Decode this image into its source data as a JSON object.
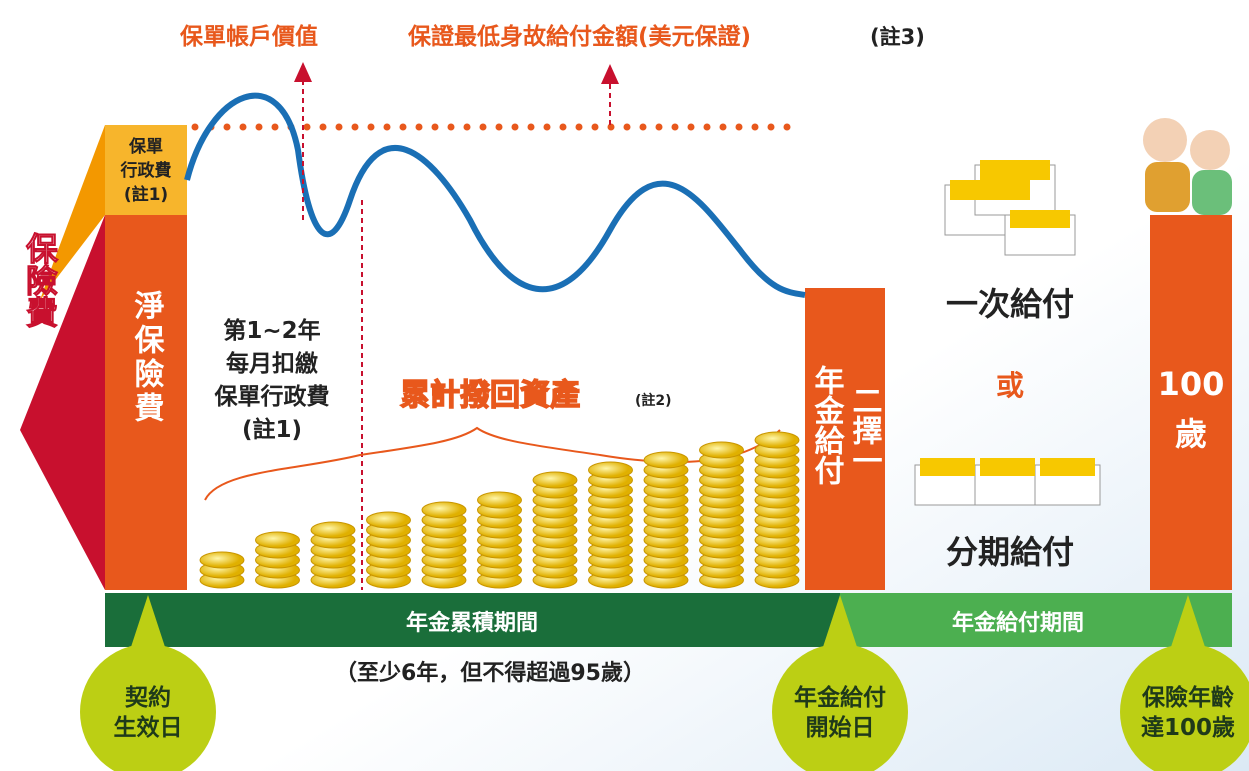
{
  "legend": {
    "account_value": "保單帳戶價值",
    "guarantee": "保證最低身故給付金額(美元保證)",
    "guarantee_note": "(註3)"
  },
  "premium": "保險費",
  "admin_fee": [
    "保單",
    "行政費",
    "(註1)"
  ],
  "net_premium": "淨保險費",
  "monthly_fee": [
    "第1~2年",
    "每月扣繳",
    "保單行政費",
    "(註1)"
  ],
  "cumulative": {
    "label": "累計撥回資產",
    "note": "(註2)"
  },
  "annuity_payment": "年金給付",
  "choose": "二擇一",
  "options": {
    "lump_sum": "一次給付",
    "or": "或",
    "installment": "分期給付"
  },
  "age_100": [
    "100",
    "歲"
  ],
  "timeline": {
    "accumulation": "年金累積期間",
    "payout": "年金給付期間",
    "note": "（至少6年，但不得超過95歲）"
  },
  "milestones": [
    [
      "契約",
      "生效日"
    ],
    [
      "年金給付",
      "開始日"
    ],
    [
      "保險年齡",
      "達100歲"
    ]
  ]
}
